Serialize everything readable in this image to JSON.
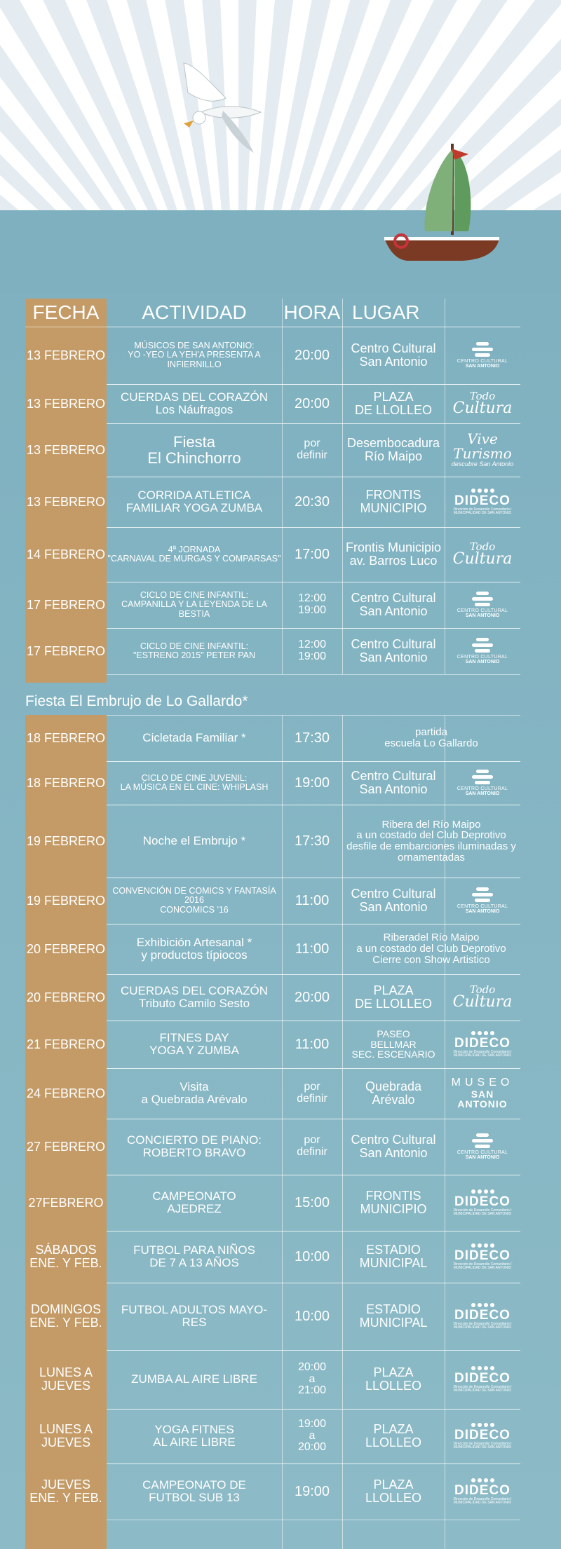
{
  "header": {
    "fecha": "FECHA",
    "actividad": "ACTIVIDAD",
    "hora": "HORA",
    "lugar": "LUGAR"
  },
  "logos": {
    "centro_cultural": {
      "line1": "CENTRO CULTURAL",
      "line2": "SAN ANTONIO"
    },
    "todo_cultura": {
      "line1": "Todo",
      "line2": "Cultura"
    },
    "vive_turismo": {
      "line1": "Vive Turismo",
      "line2": "descubre San Antonio"
    },
    "dideco": {
      "line1": "DIDECO",
      "line2": "Dirección de Desarrollo Comunitario I MUNICIPALIDAD DE SAN ANTONIO"
    },
    "museo": {
      "line1": "MUSEO",
      "line2": "SAN ANTONIO"
    }
  },
  "section_title": "Fiesta  El Embrujo de Lo Gallardo*",
  "rows": [
    {
      "fecha": "13 FEBRERO",
      "actividad": "MÚSICOS DE SAN ANTONIO:\nYO -YEO LA YEH'A PRESENTA A INFIERNILLO",
      "hora": "20:00",
      "lugar": "Centro Cultural\nSan Antonio",
      "logo": "centro_cultural"
    },
    {
      "fecha": "13 FEBRERO",
      "actividad": "CUERDAS DEL CORAZÓN\nLos Náufragos",
      "hora": "20:00",
      "lugar": "PLAZA\nDE LLOLLEO",
      "logo": "todo_cultura"
    },
    {
      "fecha": "13 FEBRERO",
      "actividad": "Fiesta\nEl Chinchorro",
      "hora": "por\ndefinir",
      "lugar": "Desembocadura\nRío Maipo",
      "logo": "vive_turismo"
    },
    {
      "fecha": "13 FEBRERO",
      "actividad": "CORRIDA ATLETICA\nFAMILIAR YOGA  ZUMBA",
      "hora": "20:30",
      "lugar": "FRONTIS\nMUNICIPIO",
      "logo": "dideco"
    },
    {
      "fecha": "14 FEBRERO",
      "actividad": "4ª JORNADA\n\"CARNAVAL DE MURGAS Y COMPARSAS\"",
      "hora": "17:00",
      "lugar": "Frontis Municipio\nav. Barros Luco",
      "logo": "todo_cultura"
    },
    {
      "fecha": "17 FEBRERO",
      "actividad": "CICLO DE CINE INFANTIL:\nCAMPANILLA Y LA LEYENDA DE LA BESTIA",
      "hora": "12:00\n19:00",
      "lugar": "Centro Cultural\nSan Antonio",
      "logo": "centro_cultural"
    },
    {
      "fecha": "17 FEBRERO",
      "actividad": "CICLO DE CINE INFANTIL:\n\"ESTRENO 2015\" PETER PAN",
      "hora": "12:00\n19:00",
      "lugar": "Centro Cultural\nSan Antonio",
      "logo": "centro_cultural"
    },
    {
      "fecha": "18 FEBRERO",
      "actividad": "Cicletada Familiar *",
      "hora": "17:30",
      "lugar": "partida\nescuela Lo Gallardo",
      "logo": ""
    },
    {
      "fecha": "18 FEBRERO",
      "actividad": "CICLO DE CINE JUVENIL:\nLA MÚSICA EN EL CINE: WHIPLASH",
      "hora": "19:00",
      "lugar": "Centro Cultural\nSan Antonio",
      "logo": "centro_cultural"
    },
    {
      "fecha": "19 FEBRERO",
      "actividad": "Noche el Embrujo *",
      "hora": "17:30",
      "lugar": "Ribera del Río Maipo\na un costado del Club Deprotivo\ndesfile de embarciones iluminadas y\nornamentadas",
      "logo": ""
    },
    {
      "fecha": "19 FEBRERO",
      "actividad": "CONVENCIÓN DE COMICS Y FANTASÍA 2016\nCONCOMICS '16",
      "hora": "11:00",
      "lugar": "Centro Cultural\nSan Antonio",
      "logo": "centro_cultural"
    },
    {
      "fecha": "20 FEBRERO",
      "actividad": "Exhibición Artesanal  *\ny productos típiocos",
      "hora": "11:00",
      "lugar": "Riberadel Río Maipo\na un costado del Club Deprotivo\nCierre con Show Artistico",
      "logo": ""
    },
    {
      "fecha": "20 FEBRERO",
      "actividad": "CUERDAS DEL CORAZÓN\nTributo Camilo Sesto",
      "hora": "20:00",
      "lugar": "PLAZA\nDE LLOLLEO",
      "logo": "todo_cultura"
    },
    {
      "fecha": "21 FEBRERO",
      "actividad": "FITNES DAY\nYOGA Y ZUMBA",
      "hora": "11:00",
      "lugar": "PASEO\nBELLMAR\nSEC. ESCENARIO",
      "logo": "dideco"
    },
    {
      "fecha": "24 FEBRERO",
      "actividad": "Visita\na Quebrada Arévalo",
      "hora": "por\ndefinir",
      "lugar": "Quebrada\nArévalo",
      "logo": "museo"
    },
    {
      "fecha": "27 FEBRERO",
      "actividad": "CONCIERTO DE PIANO:\nROBERTO BRAVO",
      "hora": "por\ndefinir",
      "lugar": "Centro Cultural\nSan Antonio",
      "logo": "centro_cultural"
    },
    {
      "fecha": "27FEBRERO",
      "actividad": "CAMPEONATO\nAJEDREZ",
      "hora": "15:00",
      "lugar": "FRONTIS\nMUNICIPIO",
      "logo": "dideco"
    },
    {
      "fecha": "SÁBADOS\nENE. Y FEB.",
      "actividad": "FUTBOL PARA NIÑOS\nDE 7 A 13 AÑOS",
      "hora": "10:00",
      "lugar": "ESTADIO\nMUNICIPAL",
      "logo": "dideco"
    },
    {
      "fecha": "DOMINGOS\nENE. Y FEB.",
      "actividad": "FUTBOL ADULTOS MAYO-\nRES",
      "hora": "10:00",
      "lugar": "ESTADIO\nMUNICIPAL",
      "logo": "dideco"
    },
    {
      "fecha": "LUNES A\nJUEVES",
      "actividad": "ZUMBA AL AIRE LIBRE",
      "hora": "20:00\na\n21:00",
      "lugar": "PLAZA\nLLOLLEO",
      "logo": "dideco"
    },
    {
      "fecha": "LUNES A\nJUEVES",
      "actividad": "YOGA FITNES\nAL AIRE LIBRE",
      "hora": "19:00\na\n20:00",
      "lugar": "PLAZA\nLLOLLEO",
      "logo": "dideco"
    },
    {
      "fecha": "JUEVES\nENE. Y FEB.",
      "actividad": "CAMPEONATO DE\nFUTBOL SUB 13",
      "hora": "19:00",
      "lugar": "PLAZA\nLLOLLEO",
      "logo": "dideco"
    }
  ]
}
